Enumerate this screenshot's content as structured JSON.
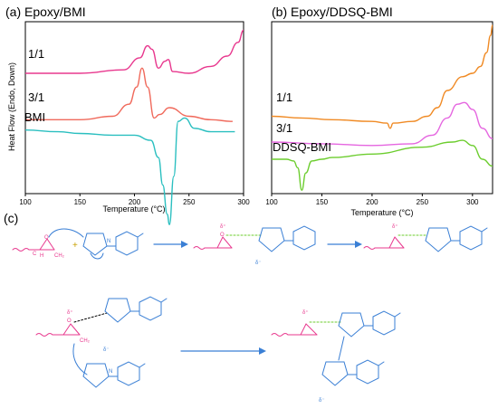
{
  "panel_c_label": "(c)",
  "chart_data": [
    {
      "type": "line",
      "title": "(a) Epoxy/BMI",
      "xlabel": "Temperature (°C)",
      "ylabel": "Heat Flow (Endo, Down)",
      "xlim": [
        100,
        300
      ],
      "xticks": [
        "100",
        "150",
        "200",
        "250",
        "300"
      ],
      "grid": false,
      "legend": "labels next to curves",
      "series": [
        {
          "name": "1/1",
          "color": "#e8388e",
          "x": [
            100,
            150,
            190,
            205,
            212,
            216,
            222,
            228,
            231,
            235,
            250,
            270,
            285,
            295,
            300
          ],
          "y": [
            0.7,
            0.7,
            0.72,
            0.79,
            0.86,
            0.84,
            0.73,
            0.77,
            0.78,
            0.71,
            0.7,
            0.74,
            0.8,
            0.88,
            0.95
          ]
        },
        {
          "name": "3/1",
          "color": "#f06a5c",
          "x": [
            100,
            150,
            180,
            195,
            202,
            207,
            212,
            218,
            223,
            232,
            250,
            270,
            290
          ],
          "y": [
            0.43,
            0.43,
            0.45,
            0.52,
            0.62,
            0.73,
            0.62,
            0.44,
            0.46,
            0.5,
            0.45,
            0.43,
            0.42
          ]
        },
        {
          "name": "BMI",
          "color": "#2bbfc0",
          "x": [
            100,
            130,
            150,
            180,
            200,
            215,
            222,
            226,
            230,
            232,
            236,
            240,
            246,
            255,
            270,
            292
          ],
          "y": [
            0.37,
            0.36,
            0.35,
            0.34,
            0.34,
            0.31,
            0.21,
            0.05,
            -0.12,
            -0.18,
            0.1,
            0.42,
            0.44,
            0.38,
            0.36,
            0.36
          ]
        }
      ]
    },
    {
      "type": "line",
      "title": "(b) Epoxy/DDSQ-BMI",
      "xlabel": "Temperature (°C)",
      "ylabel": "",
      "xlim": [
        100,
        320
      ],
      "xticks": [
        "100",
        "150",
        "200",
        "250",
        "300"
      ],
      "grid": false,
      "legend": "labels next to curves",
      "series": [
        {
          "name": "1/1",
          "color": "#f08a24",
          "x": [
            100,
            130,
            160,
            200,
            215,
            218,
            221,
            240,
            255,
            265,
            275,
            290,
            300,
            308,
            314,
            318,
            320
          ],
          "y": [
            0.45,
            0.44,
            0.43,
            0.42,
            0.41,
            0.38,
            0.41,
            0.42,
            0.45,
            0.5,
            0.6,
            0.68,
            0.7,
            0.74,
            0.82,
            0.92,
            0.98
          ]
        },
        {
          "name": "3/1",
          "color": "#e566e0",
          "x": [
            100,
            150,
            200,
            240,
            260,
            275,
            285,
            292,
            300,
            310,
            320
          ],
          "y": [
            0.3,
            0.29,
            0.28,
            0.29,
            0.34,
            0.44,
            0.52,
            0.53,
            0.49,
            0.38,
            0.32
          ]
        },
        {
          "name": "DDSQ-BMI",
          "color": "#6ccd2e",
          "x": [
            100,
            115,
            122,
            126,
            130,
            134,
            140,
            150,
            160,
            200,
            250,
            280,
            290,
            300,
            310,
            320
          ],
          "y": [
            0.2,
            0.2,
            0.19,
            0.15,
            0.02,
            0.12,
            0.19,
            0.2,
            0.21,
            0.23,
            0.27,
            0.3,
            0.31,
            0.28,
            0.2,
            0.16
          ]
        }
      ]
    }
  ],
  "mechanism": {
    "row1_labels": [
      "δ⁺",
      "δ⁻",
      "O",
      "H",
      "CH₂",
      "C",
      "N",
      "O",
      "O",
      "+"
    ],
    "row2_labels": [
      "δ⁺",
      "δ⁻",
      "O",
      "H",
      "CH₂",
      "C",
      "N",
      "O",
      "O"
    ],
    "colors": {
      "epoxy": "#e8388e",
      "maleimide": "#3a7fd5",
      "arrow": "#3a7fd5",
      "hbond": "#6ccd2e"
    }
  }
}
